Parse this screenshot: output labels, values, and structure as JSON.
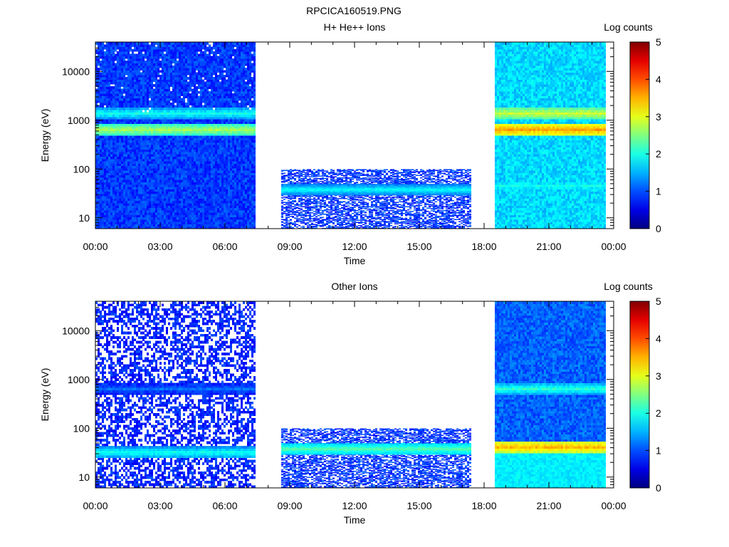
{
  "figure_title": "RPCICA160519.PNG",
  "colorbar": {
    "label": "Log counts",
    "ticks": [
      "0",
      "1",
      "2",
      "3",
      "4",
      "5"
    ],
    "range": [
      0,
      5
    ],
    "colormap": [
      "#00008f",
      "#0000ff",
      "#00ffff",
      "#ffff00",
      "#ff0000",
      "#800000"
    ]
  },
  "chart_data": [
    {
      "type": "heatmap",
      "title": "H+ He++ Ions",
      "xlabel": "Time",
      "ylabel": "Energy (eV)",
      "x_ticks": [
        "00:00",
        "03:00",
        "06:00",
        "09:00",
        "12:00",
        "15:00",
        "18:00",
        "21:00",
        "00:00"
      ],
      "x_range_hours": [
        0,
        24
      ],
      "y_scale": "log",
      "y_ticks": [
        "10",
        "100",
        "1000",
        "10000"
      ],
      "y_range": [
        6,
        40000
      ],
      "data_intervals": [
        {
          "start_h": 0.0,
          "end_h": 7.4,
          "energy_max": 40000,
          "background_log": 0.9,
          "sparse": false,
          "bands": [
            {
              "energy": 650,
              "log": 2.7
            },
            {
              "energy": 1400,
              "log": 2.0
            }
          ],
          "speckle_above": 1500
        },
        {
          "start_h": 8.6,
          "end_h": 17.4,
          "energy_max": 100,
          "background_log": 0.9,
          "sparse": true,
          "bands": [
            {
              "energy": 38,
              "log": 1.9
            }
          ]
        },
        {
          "start_h": 18.5,
          "end_h": 23.6,
          "energy_max": 40000,
          "background_log": 1.7,
          "sparse": false,
          "bands": [
            {
              "energy": 650,
              "log": 3.6
            },
            {
              "energy": 1400,
              "log": 2.9
            },
            {
              "energy": 45,
              "log": 2.0
            }
          ]
        }
      ]
    },
    {
      "type": "heatmap",
      "title": "Other Ions",
      "xlabel": "Time",
      "ylabel": "Energy (eV)",
      "x_ticks": [
        "00:00",
        "03:00",
        "06:00",
        "09:00",
        "12:00",
        "15:00",
        "18:00",
        "21:00",
        "00:00"
      ],
      "x_range_hours": [
        0,
        24
      ],
      "y_scale": "log",
      "y_ticks": [
        "10",
        "100",
        "1000",
        "10000"
      ],
      "y_range": [
        6,
        40000
      ],
      "data_intervals": [
        {
          "start_h": 0.0,
          "end_h": 7.4,
          "energy_max": 40000,
          "background_log": 0.8,
          "sparse": true,
          "bands": [
            {
              "energy": 650,
              "log": 1.2
            },
            {
              "energy": 32,
              "log": 2.0
            }
          ]
        },
        {
          "start_h": 8.6,
          "end_h": 17.4,
          "energy_max": 100,
          "background_log": 0.9,
          "sparse": true,
          "bands": [
            {
              "energy": 38,
              "log": 2.3
            }
          ]
        },
        {
          "start_h": 18.5,
          "end_h": 23.6,
          "energy_max": 40000,
          "background_log": 1.1,
          "sparse": false,
          "bands": [
            {
              "energy": 650,
              "log": 2.1
            },
            {
              "energy": 42,
              "log": 3.5
            }
          ],
          "low_fill_log": 1.8
        }
      ]
    }
  ]
}
